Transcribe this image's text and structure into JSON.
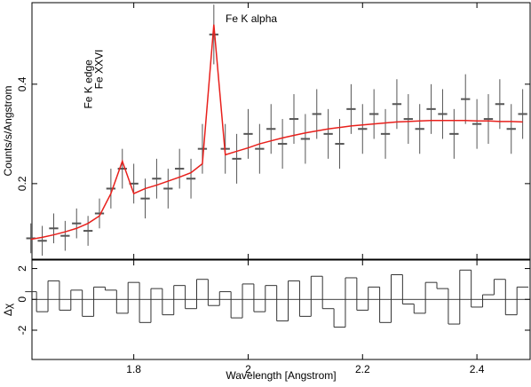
{
  "chart_data": [
    {
      "type": "spectrum",
      "y_label": "Counts/s/Angstrom",
      "annotations": [
        "Fe K edge",
        "Fe XXVI",
        "Fe K alpha"
      ],
      "x": [
        1.62,
        1.64,
        1.66,
        1.68,
        1.7,
        1.72,
        1.74,
        1.76,
        1.78,
        1.8,
        1.82,
        1.84,
        1.86,
        1.88,
        1.9,
        1.92,
        1.94,
        1.96,
        1.98,
        2.0,
        2.02,
        2.04,
        2.06,
        2.08,
        2.1,
        2.12,
        2.14,
        2.16,
        2.18,
        2.2,
        2.22,
        2.24,
        2.26,
        2.28,
        2.3,
        2.32,
        2.34,
        2.36,
        2.38,
        2.4,
        2.42,
        2.44,
        2.46,
        2.48
      ],
      "series": [
        {
          "color": "#555555",
          "values": [
            0.09,
            0.085,
            0.11,
            0.095,
            0.12,
            0.105,
            0.14,
            0.19,
            0.23,
            0.2,
            0.17,
            0.21,
            0.19,
            0.23,
            0.21,
            0.27,
            0.5,
            0.27,
            0.25,
            0.3,
            0.27,
            0.31,
            0.28,
            0.33,
            0.29,
            0.34,
            0.3,
            0.28,
            0.35,
            0.31,
            0.34,
            0.3,
            0.36,
            0.33,
            0.31,
            0.35,
            0.34,
            0.3,
            0.37,
            0.32,
            0.33,
            0.36,
            0.31,
            0.34
          ],
          "errors": [
            0.03,
            0.03,
            0.03,
            0.03,
            0.03,
            0.03,
            0.03,
            0.04,
            0.04,
            0.04,
            0.04,
            0.04,
            0.04,
            0.04,
            0.04,
            0.05,
            0.06,
            0.05,
            0.05,
            0.05,
            0.05,
            0.05,
            0.05,
            0.05,
            0.05,
            0.05,
            0.05,
            0.05,
            0.05,
            0.05,
            0.05,
            0.05,
            0.05,
            0.05,
            0.05,
            0.05,
            0.05,
            0.05,
            0.05,
            0.05,
            0.05,
            0.05,
            0.05,
            0.05
          ]
        },
        {
          "color": "#e8201c",
          "values": [
            0.088,
            0.092,
            0.097,
            0.103,
            0.11,
            0.12,
            0.135,
            0.18,
            0.245,
            0.18,
            0.19,
            0.197,
            0.205,
            0.213,
            0.222,
            0.24,
            0.52,
            0.258,
            0.265,
            0.272,
            0.28,
            0.286,
            0.292,
            0.297,
            0.302,
            0.306,
            0.31,
            0.313,
            0.316,
            0.318,
            0.32,
            0.322,
            0.324,
            0.325,
            0.326,
            0.327,
            0.327,
            0.327,
            0.327,
            0.326,
            0.326,
            0.325,
            0.325,
            0.324
          ]
        }
      ],
      "xlim": [
        1.622,
        2.493
      ],
      "xticks": [
        1.8,
        2,
        2.2,
        2.4
      ],
      "ylim": [
        0.048,
        0.564
      ],
      "yticks": [
        0.2,
        0.4
      ]
    },
    {
      "type": "residuals",
      "y_label": "Δχ",
      "x_label": "Wavelength [Angstrom]",
      "x": [
        1.62,
        1.64,
        1.66,
        1.68,
        1.7,
        1.72,
        1.74,
        1.76,
        1.78,
        1.8,
        1.82,
        1.84,
        1.86,
        1.88,
        1.9,
        1.92,
        1.94,
        1.96,
        1.98,
        2.0,
        2.02,
        2.04,
        2.06,
        2.08,
        2.1,
        2.12,
        2.14,
        2.16,
        2.18,
        2.2,
        2.22,
        2.24,
        2.26,
        2.28,
        2.3,
        2.32,
        2.34,
        2.36,
        2.38,
        2.4,
        2.42,
        2.44,
        2.46,
        2.48
      ],
      "values": [
        0.5,
        -0.8,
        1.2,
        -0.7,
        0.6,
        -1.1,
        0.8,
        0.6,
        -0.9,
        1.1,
        -1.5,
        0.7,
        -1.0,
        0.9,
        -0.6,
        1.3,
        -0.4,
        0.5,
        -1.2,
        1.0,
        -0.8,
        0.9,
        -1.4,
        1.2,
        -1.1,
        1.5,
        -0.6,
        -1.8,
        1.4,
        -0.7,
        0.8,
        -1.5,
        1.6,
        -0.3,
        -0.9,
        1.1,
        0.7,
        -1.6,
        1.9,
        -0.5,
        0.3,
        1.3,
        -1.0,
        0.8
      ],
      "color": "#333333",
      "xlim": [
        1.622,
        2.493
      ],
      "xticks": [
        1.8,
        2,
        2.2,
        2.4
      ],
      "ylim": [
        -3.9,
        2.55
      ],
      "yticks": [
        -2,
        0,
        2
      ]
    }
  ]
}
